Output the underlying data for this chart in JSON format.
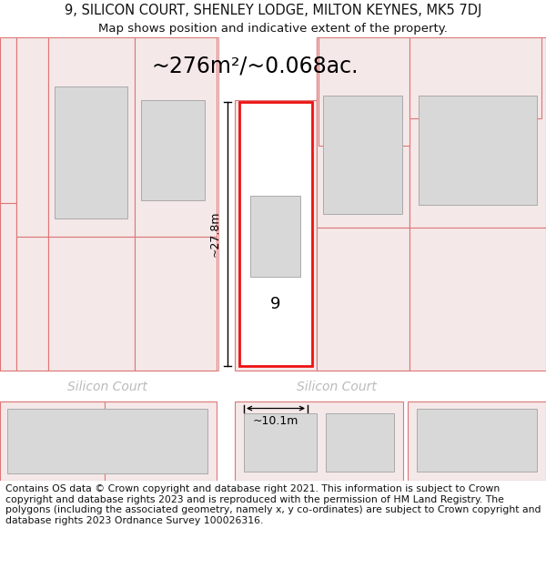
{
  "title": "9, SILICON COURT, SHENLEY LODGE, MILTON KEYNES, MK5 7DJ",
  "subtitle": "Map shows position and indicative extent of the property.",
  "area_text": "~276m²/~0.068ac.",
  "dim_width": "~10.1m",
  "dim_height": "~27.8m",
  "copyright_text": "Contains OS data © Crown copyright and database right 2021. This information is subject to Crown copyright and database rights 2023 and is reproduced with the permission of HM Land Registry. The polygons (including the associated geometry, namely x, y co-ordinates) are subject to Crown copyright and database rights 2023 Ordnance Survey 100026316.",
  "bg_color": "#ffffff",
  "map_bg": "#f7f0f0",
  "road_color": "#ffffff",
  "plot_outline": "#e8a0a0",
  "bld_fill": "#d8d8d8",
  "bld_edge": "#aaaaaa",
  "prop_fill": "#ffffff",
  "prop_edge": "#ee1111",
  "title_fontsize": 10.5,
  "subtitle_fontsize": 9.5,
  "area_fontsize": 17,
  "street_fontsize": 10,
  "copyright_fontsize": 7.8
}
